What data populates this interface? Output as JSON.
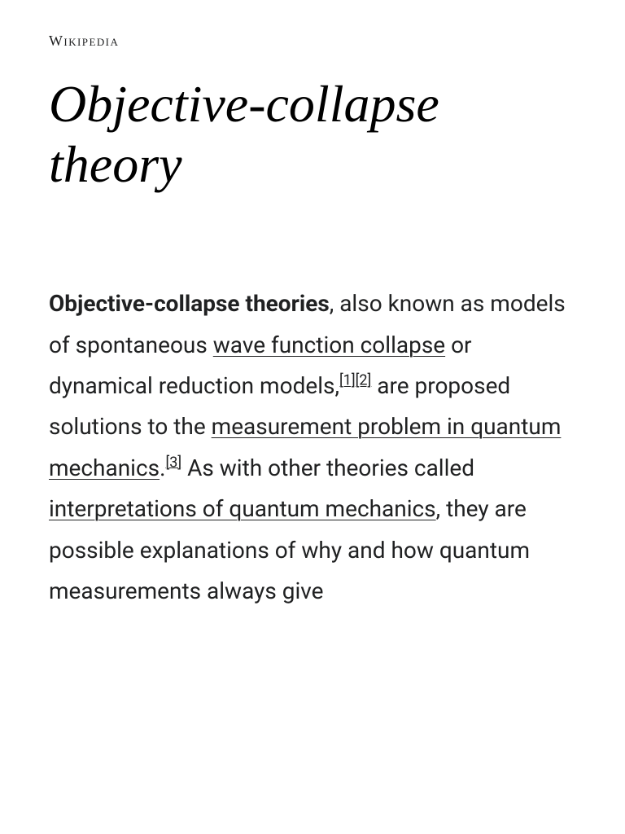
{
  "site": {
    "name": "Wikipedia"
  },
  "article": {
    "title": "Objective-collapse theory",
    "intro": {
      "bold_term": "Objective-collapse theories",
      "text_1": ", also known as models of spontaneous ",
      "link_1": "wave function collapse",
      "text_2": " or dynamical reduction models,",
      "ref_1": "[1]",
      "ref_2": "[2]",
      "text_3": " are proposed solutions to the ",
      "link_2": "measurement problem in quantum mechanics",
      "text_4": ".",
      "ref_3": "[3]",
      "text_5": " As with other theories called ",
      "link_3": "interpretations of quantum mechanics",
      "text_6": ", they are possible explanations of why and how quantum measurements always give"
    }
  }
}
